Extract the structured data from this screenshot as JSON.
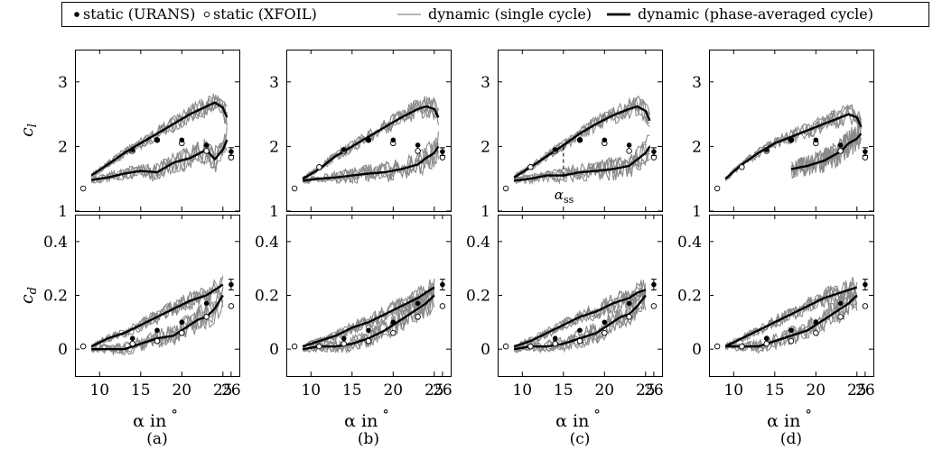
{
  "legend": {
    "items": [
      {
        "label": "static (URANS)",
        "marker": "filled-circle"
      },
      {
        "label": "static (XFOIL)",
        "marker": "open-circle"
      },
      {
        "label": "dynamic (single cycle)",
        "marker": "thin-gray-line",
        "color": "#8a8a8a"
      },
      {
        "label": "dynamic (phase-averaged cycle)",
        "marker": "thick-black-line",
        "color": "#000000"
      }
    ]
  },
  "annotation": {
    "text": "α",
    "sub": "ss",
    "alpha_ss": 15
  },
  "chart_data": [
    {
      "type": "line",
      "panel": "a",
      "quantity": "cl",
      "caption": "(a)",
      "ylabel": "c",
      "ylabel_sub": "l",
      "xlabel": "α in",
      "xlabel_unit": "°",
      "xlim": [
        7,
        27
      ],
      "ylim": [
        1,
        3.5
      ],
      "xticks": [
        "10",
        "15",
        "20",
        "25"
      ],
      "extra_xtick": "26",
      "yticks": [
        "1",
        "2",
        "3"
      ],
      "static_urans": {
        "x": [
          14,
          17,
          20,
          23,
          26
        ],
        "y": [
          1.95,
          2.1,
          2.1,
          2.02,
          1.92
        ]
      },
      "static_xfoil": {
        "x": [
          8,
          14,
          17,
          20,
          23,
          26
        ],
        "y": [
          1.35,
          1.93,
          2.1,
          2.05,
          1.93,
          1.83
        ]
      },
      "phase_averaged": {
        "upstroke": {
          "x": [
            9,
            11,
            13,
            15,
            17,
            19,
            21,
            23,
            24,
            25,
            25.5
          ],
          "y": [
            1.55,
            1.72,
            1.9,
            2.05,
            2.2,
            2.35,
            2.5,
            2.62,
            2.68,
            2.6,
            2.45
          ]
        },
        "downstroke": {
          "x": [
            25.5,
            25,
            24,
            23,
            21,
            19,
            17,
            15,
            13,
            11,
            9
          ],
          "y": [
            2.1,
            1.95,
            1.8,
            1.95,
            1.82,
            1.75,
            1.6,
            1.62,
            1.58,
            1.52,
            1.48
          ]
        }
      }
    },
    {
      "type": "line",
      "panel": "b",
      "quantity": "cl",
      "caption": "(b)",
      "ylabel": "",
      "ylabel_sub": "",
      "xlabel": "α in",
      "xlabel_unit": "°",
      "xlim": [
        7,
        27
      ],
      "ylim": [
        1,
        3.5
      ],
      "xticks": [
        "10",
        "15",
        "20",
        "25"
      ],
      "extra_xtick": "26",
      "yticks": [
        "1",
        "2",
        "3"
      ],
      "static_urans": {
        "x": [
          14,
          17,
          20,
          23,
          26
        ],
        "y": [
          1.95,
          2.1,
          2.1,
          2.02,
          1.92
        ]
      },
      "static_xfoil": {
        "x": [
          8,
          11,
          14,
          17,
          20,
          23,
          26
        ],
        "y": [
          1.35,
          1.68,
          1.93,
          2.1,
          2.05,
          1.93,
          1.83
        ]
      },
      "phase_averaged": {
        "upstroke": {
          "x": [
            9,
            11,
            13,
            15,
            17,
            19,
            21,
            23,
            24,
            25,
            25.5
          ],
          "y": [
            1.5,
            1.65,
            1.85,
            2.0,
            2.15,
            2.3,
            2.45,
            2.58,
            2.62,
            2.58,
            2.45
          ]
        },
        "downstroke": {
          "x": [
            25.5,
            25,
            24,
            23,
            21,
            19,
            17,
            15,
            13,
            11,
            9
          ],
          "y": [
            2.0,
            1.9,
            1.82,
            1.72,
            1.65,
            1.6,
            1.58,
            1.55,
            1.52,
            1.5,
            1.47
          ]
        }
      }
    },
    {
      "type": "line",
      "panel": "c",
      "quantity": "cl",
      "caption": "(c)",
      "ylabel": "",
      "ylabel_sub": "",
      "xlabel": "α in",
      "xlabel_unit": "°",
      "xlim": [
        7,
        27
      ],
      "ylim": [
        1,
        3.5
      ],
      "xticks": [
        "10",
        "15",
        "20",
        "25"
      ],
      "extra_xtick": "26",
      "yticks": [
        "1",
        "2",
        "3"
      ],
      "static_urans": {
        "x": [
          14,
          17,
          20,
          23,
          26
        ],
        "y": [
          1.95,
          2.1,
          2.1,
          2.02,
          1.92
        ]
      },
      "static_xfoil": {
        "x": [
          8,
          11,
          14,
          17,
          20,
          23,
          26
        ],
        "y": [
          1.35,
          1.68,
          1.93,
          2.1,
          2.05,
          1.93,
          1.83
        ]
      },
      "phase_averaged": {
        "upstroke": {
          "x": [
            9,
            11,
            13,
            15,
            17,
            19,
            21,
            23,
            24,
            25,
            25.5
          ],
          "y": [
            1.52,
            1.68,
            1.85,
            2.02,
            2.2,
            2.35,
            2.48,
            2.58,
            2.62,
            2.55,
            2.4
          ]
        },
        "downstroke": {
          "x": [
            25.5,
            25,
            24,
            23,
            21,
            19,
            17,
            15,
            13,
            11,
            9
          ],
          "y": [
            2.0,
            1.9,
            1.8,
            1.7,
            1.65,
            1.62,
            1.6,
            1.55,
            1.55,
            1.5,
            1.47
          ]
        }
      }
    },
    {
      "type": "line",
      "panel": "d",
      "quantity": "cl",
      "caption": "(d)",
      "ylabel": "",
      "ylabel_sub": "",
      "xlabel": "α in",
      "xlabel_unit": "°",
      "xlim": [
        7,
        27
      ],
      "ylim": [
        1,
        3.5
      ],
      "xticks": [
        "10",
        "15",
        "20",
        "25"
      ],
      "extra_xtick": "26",
      "yticks": [
        "1",
        "2",
        "3"
      ],
      "static_urans": {
        "x": [
          14,
          17,
          20,
          23,
          26
        ],
        "y": [
          1.95,
          2.1,
          2.1,
          2.02,
          1.92
        ]
      },
      "static_xfoil": {
        "x": [
          8,
          11,
          14,
          17,
          20,
          23,
          26
        ],
        "y": [
          1.35,
          1.68,
          1.93,
          2.1,
          2.05,
          1.93,
          1.83
        ]
      },
      "phase_averaged": {
        "upstroke": {
          "x": [
            9,
            11,
            13,
            15,
            17,
            19,
            21,
            23,
            24,
            25,
            25.5
          ],
          "y": [
            1.5,
            1.72,
            1.9,
            2.05,
            2.15,
            2.25,
            2.35,
            2.45,
            2.5,
            2.45,
            2.3
          ]
        },
        "downstroke": {
          "x": [
            25.5,
            25,
            24,
            23,
            21,
            19,
            17
          ],
          "y": [
            2.2,
            2.12,
            2.05,
            1.92,
            1.78,
            1.7,
            1.65
          ]
        }
      }
    },
    {
      "type": "line",
      "panel": "a",
      "quantity": "cd",
      "caption": "(a)",
      "ylabel": "c",
      "ylabel_sub": "d",
      "xlabel": "α in",
      "xlabel_unit": "°",
      "xlim": [
        7,
        27
      ],
      "ylim": [
        -0.1,
        0.5
      ],
      "xticks": [
        "10",
        "15",
        "20",
        "25"
      ],
      "extra_xtick": "26",
      "yticks": [
        "0",
        "0.2",
        "0.4"
      ],
      "static_urans": {
        "x": [
          14,
          17,
          20,
          23,
          26
        ],
        "y": [
          0.04,
          0.07,
          0.1,
          0.17,
          0.24
        ]
      },
      "static_xfoil": {
        "x": [
          8,
          14,
          17,
          20,
          23,
          26
        ],
        "y": [
          0.01,
          0.02,
          0.03,
          0.06,
          0.12,
          0.16
        ]
      },
      "phase_averaged": {
        "upstroke": {
          "x": [
            9,
            11,
            13,
            15,
            17,
            19,
            21,
            23,
            24,
            25
          ],
          "y": [
            0.01,
            0.04,
            0.06,
            0.09,
            0.12,
            0.15,
            0.18,
            0.2,
            0.22,
            0.24
          ]
        },
        "downstroke": {
          "x": [
            25,
            24,
            23,
            22,
            21,
            20,
            19,
            17,
            15,
            13,
            11,
            9
          ],
          "y": [
            0.2,
            0.15,
            0.12,
            0.11,
            0.09,
            0.07,
            0.05,
            0.04,
            0.02,
            0.0,
            0.0,
            0.0
          ]
        }
      }
    },
    {
      "type": "line",
      "panel": "b",
      "quantity": "cd",
      "caption": "(b)",
      "ylabel": "",
      "ylabel_sub": "",
      "xlabel": "α in",
      "xlabel_unit": "°",
      "xlim": [
        7,
        27
      ],
      "ylim": [
        -0.1,
        0.5
      ],
      "xticks": [
        "10",
        "15",
        "20",
        "25"
      ],
      "extra_xtick": "26",
      "yticks": [
        "0",
        "0.2",
        "0.4"
      ],
      "static_urans": {
        "x": [
          14,
          17,
          20,
          23,
          26
        ],
        "y": [
          0.04,
          0.07,
          0.1,
          0.17,
          0.24
        ]
      },
      "static_xfoil": {
        "x": [
          8,
          11,
          14,
          17,
          20,
          23,
          26
        ],
        "y": [
          0.01,
          0.01,
          0.02,
          0.03,
          0.06,
          0.12,
          0.16
        ]
      },
      "phase_averaged": {
        "upstroke": {
          "x": [
            9,
            11,
            13,
            15,
            17,
            19,
            21,
            23,
            24,
            25
          ],
          "y": [
            0.01,
            0.03,
            0.05,
            0.08,
            0.1,
            0.13,
            0.16,
            0.19,
            0.21,
            0.23
          ]
        },
        "downstroke": {
          "x": [
            25,
            24,
            23,
            22,
            21,
            20,
            19,
            17,
            15,
            13,
            11,
            9
          ],
          "y": [
            0.2,
            0.17,
            0.15,
            0.13,
            0.11,
            0.09,
            0.07,
            0.04,
            0.02,
            0.01,
            0.01,
            0.0
          ]
        }
      }
    },
    {
      "type": "line",
      "panel": "c",
      "quantity": "cd",
      "caption": "(c)",
      "ylabel": "",
      "ylabel_sub": "",
      "xlabel": "α in",
      "xlabel_unit": "°",
      "xlim": [
        7,
        27
      ],
      "ylim": [
        -0.1,
        0.5
      ],
      "xticks": [
        "10",
        "15",
        "20",
        "25"
      ],
      "extra_xtick": "26",
      "yticks": [
        "0",
        "0.2",
        "0.4"
      ],
      "static_urans": {
        "x": [
          14,
          17,
          20,
          23,
          26
        ],
        "y": [
          0.04,
          0.07,
          0.1,
          0.17,
          0.24
        ]
      },
      "static_xfoil": {
        "x": [
          8,
          11,
          14,
          17,
          20,
          23,
          26
        ],
        "y": [
          0.01,
          0.01,
          0.02,
          0.03,
          0.06,
          0.12,
          0.16
        ]
      },
      "phase_averaged": {
        "upstroke": {
          "x": [
            9,
            11,
            13,
            15,
            17,
            19,
            21,
            23,
            24,
            25
          ],
          "y": [
            0.01,
            0.03,
            0.06,
            0.09,
            0.12,
            0.14,
            0.17,
            0.19,
            0.21,
            0.22
          ]
        },
        "downstroke": {
          "x": [
            25,
            24,
            23,
            22,
            21,
            20,
            19,
            17,
            15,
            13,
            11,
            9
          ],
          "y": [
            0.2,
            0.16,
            0.13,
            0.12,
            0.1,
            0.08,
            0.06,
            0.04,
            0.02,
            0.01,
            0.01,
            0.0
          ]
        }
      }
    },
    {
      "type": "line",
      "panel": "d",
      "quantity": "cd",
      "caption": "(d)",
      "ylabel": "",
      "ylabel_sub": "",
      "xlabel": "α in",
      "xlabel_unit": "°",
      "xlim": [
        7,
        27
      ],
      "ylim": [
        -0.1,
        0.5
      ],
      "xticks": [
        "10",
        "15",
        "20",
        "25"
      ],
      "extra_xtick": "26",
      "yticks": [
        "0",
        "0.2",
        "0.4"
      ],
      "static_urans": {
        "x": [
          14,
          17,
          20,
          23,
          26
        ],
        "y": [
          0.04,
          0.07,
          0.1,
          0.17,
          0.24
        ]
      },
      "static_xfoil": {
        "x": [
          8,
          11,
          14,
          17,
          20,
          23,
          26
        ],
        "y": [
          0.01,
          0.01,
          0.02,
          0.03,
          0.06,
          0.12,
          0.16
        ]
      },
      "phase_averaged": {
        "upstroke": {
          "x": [
            9,
            11,
            13,
            15,
            17,
            19,
            21,
            23,
            24,
            25
          ],
          "y": [
            0.01,
            0.04,
            0.07,
            0.1,
            0.13,
            0.16,
            0.19,
            0.21,
            0.22,
            0.23
          ]
        },
        "downstroke": {
          "x": [
            25,
            24,
            23,
            22,
            21,
            20,
            19,
            17,
            15,
            13,
            11,
            9
          ],
          "y": [
            0.2,
            0.17,
            0.15,
            0.13,
            0.11,
            0.09,
            0.07,
            0.05,
            0.03,
            0.01,
            0.01,
            0.01
          ]
        }
      }
    }
  ]
}
